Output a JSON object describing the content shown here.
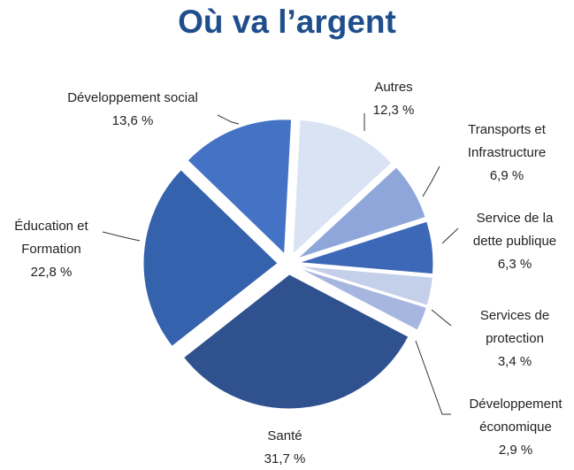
{
  "chart_data": {
    "type": "pie",
    "title": "Où va l’argent",
    "categories": [
      "Autres",
      "Transports et Infrastructure",
      "Service de la dette publique",
      "Services de protection",
      "Développement économique",
      "Santé",
      "Éducation et Formation",
      "Développement social"
    ],
    "values": [
      12.3,
      6.9,
      6.3,
      3.4,
      2.9,
      31.7,
      22.8,
      13.6
    ],
    "value_labels": [
      "12,3 %",
      "6,9 %",
      "6,3 %",
      "3,4 %",
      "2,9 %",
      "31,7 %",
      "22,8 %",
      "13,6 %"
    ],
    "colors": [
      "#dae3f3",
      "#8ea6da",
      "#3d68b8",
      "#c4cfe9",
      "#a7b6df",
      "#2f528f",
      "#3562ac",
      "#4472c4"
    ]
  }
}
